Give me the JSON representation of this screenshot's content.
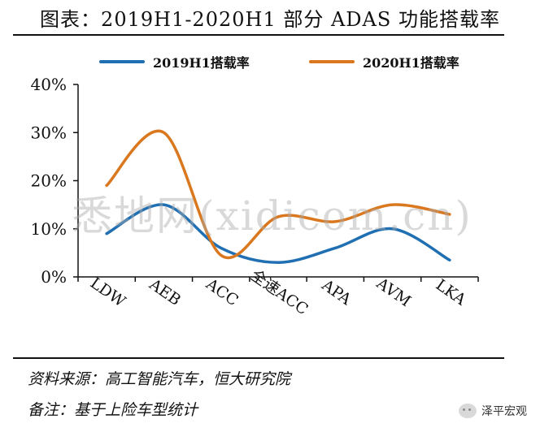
{
  "title": "图表：2019H1-2020H1 部分 ADAS 功能搭载率",
  "watermark": "悉地网(xidicom.cn)",
  "source_note": "资料来源：高工智能汽车，恒大研究院",
  "remark_note": "备注：基于上险车型统计",
  "brand": "泽平宏观",
  "colors": {
    "series_2019": "#1f6fb2",
    "series_2020": "#d9781f",
    "axis": "#111111"
  },
  "chart_data": {
    "type": "line",
    "smooth": true,
    "categories": [
      "LDW",
      "AEB",
      "ACC",
      "全速ACC",
      "APA",
      "AVM",
      "LKA"
    ],
    "series": [
      {
        "name": "2019H1搭载率",
        "values": [
          9,
          15,
          6,
          3,
          6,
          10,
          3.5
        ]
      },
      {
        "name": "2020H1搭载率",
        "values": [
          19,
          30,
          4.5,
          12.5,
          11.5,
          15,
          13
        ]
      }
    ],
    "y_ticks": [
      "0%",
      "10%",
      "20%",
      "30%",
      "40%"
    ],
    "ylim": [
      0,
      40
    ],
    "legend_position": "top",
    "grid": false
  }
}
